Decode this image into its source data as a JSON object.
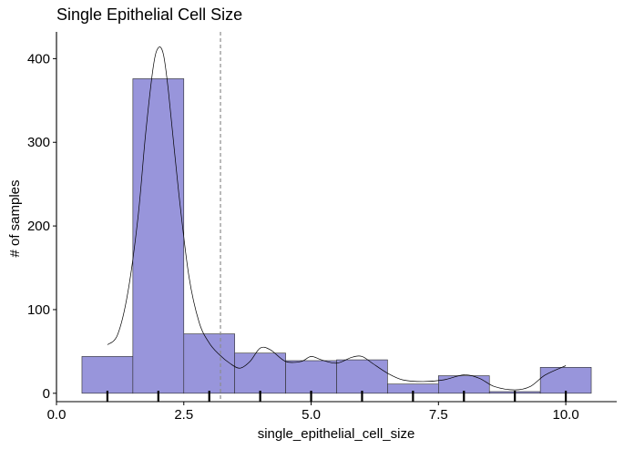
{
  "chart_data": {
    "type": "bar",
    "title": "Single Epithelial Cell Size",
    "xlabel": "single_epithelial_cell_size",
    "ylabel": "# of samples",
    "xlim": [
      0,
      11
    ],
    "ylim": [
      -10,
      432
    ],
    "x_ticks": [
      0,
      2.5,
      5,
      7.5,
      10
    ],
    "x_tick_labels": [
      "0.0",
      "2.5",
      "5.0",
      "7.5",
      "10.0"
    ],
    "y_ticks": [
      0,
      100,
      200,
      300,
      400
    ],
    "y_tick_labels": [
      "0",
      "100",
      "200",
      "300",
      "400"
    ],
    "bins": [
      {
        "x0": 0.5,
        "x1": 1.5,
        "count": 44
      },
      {
        "x0": 1.5,
        "x1": 2.5,
        "count": 376
      },
      {
        "x0": 2.5,
        "x1": 3.5,
        "count": 71
      },
      {
        "x0": 3.5,
        "x1": 4.5,
        "count": 48
      },
      {
        "x0": 4.5,
        "x1": 5.5,
        "count": 39
      },
      {
        "x0": 5.5,
        "x1": 6.5,
        "count": 40
      },
      {
        "x0": 6.5,
        "x1": 7.5,
        "count": 11
      },
      {
        "x0": 7.5,
        "x1": 8.5,
        "count": 21
      },
      {
        "x0": 8.5,
        "x1": 9.5,
        "count": 2
      },
      {
        "x0": 9.5,
        "x1": 10.5,
        "count": 31
      }
    ],
    "mean_line_x": 3.22,
    "rug_x": [
      1,
      2,
      3,
      4,
      5,
      6,
      7,
      8,
      9,
      10
    ],
    "density_curve": [
      [
        1.0,
        58
      ],
      [
        1.2,
        70
      ],
      [
        1.4,
        120
      ],
      [
        1.6,
        210
      ],
      [
        1.75,
        310
      ],
      [
        1.9,
        390
      ],
      [
        2.0,
        413
      ],
      [
        2.1,
        405
      ],
      [
        2.2,
        360
      ],
      [
        2.4,
        240
      ],
      [
        2.6,
        140
      ],
      [
        2.8,
        85
      ],
      [
        3.0,
        60
      ],
      [
        3.2,
        46
      ],
      [
        3.4,
        36
      ],
      [
        3.6,
        30
      ],
      [
        3.8,
        38
      ],
      [
        4.0,
        54
      ],
      [
        4.2,
        52
      ],
      [
        4.5,
        38
      ],
      [
        4.8,
        38
      ],
      [
        5.0,
        44
      ],
      [
        5.2,
        40
      ],
      [
        5.5,
        36
      ],
      [
        5.8,
        43
      ],
      [
        6.0,
        44
      ],
      [
        6.2,
        36
      ],
      [
        6.5,
        24
      ],
      [
        6.8,
        16
      ],
      [
        7.2,
        14
      ],
      [
        7.6,
        16
      ],
      [
        8.0,
        22
      ],
      [
        8.3,
        18
      ],
      [
        8.6,
        8
      ],
      [
        9.0,
        4
      ],
      [
        9.3,
        8
      ],
      [
        9.6,
        22
      ],
      [
        10.0,
        33
      ]
    ],
    "colors": {
      "bar_fill": "#9895db",
      "bar_stroke": "#2b2b2b",
      "mean_line": "#8c8c8c",
      "curve": "#000000"
    },
    "grid": false,
    "legend": "none"
  }
}
